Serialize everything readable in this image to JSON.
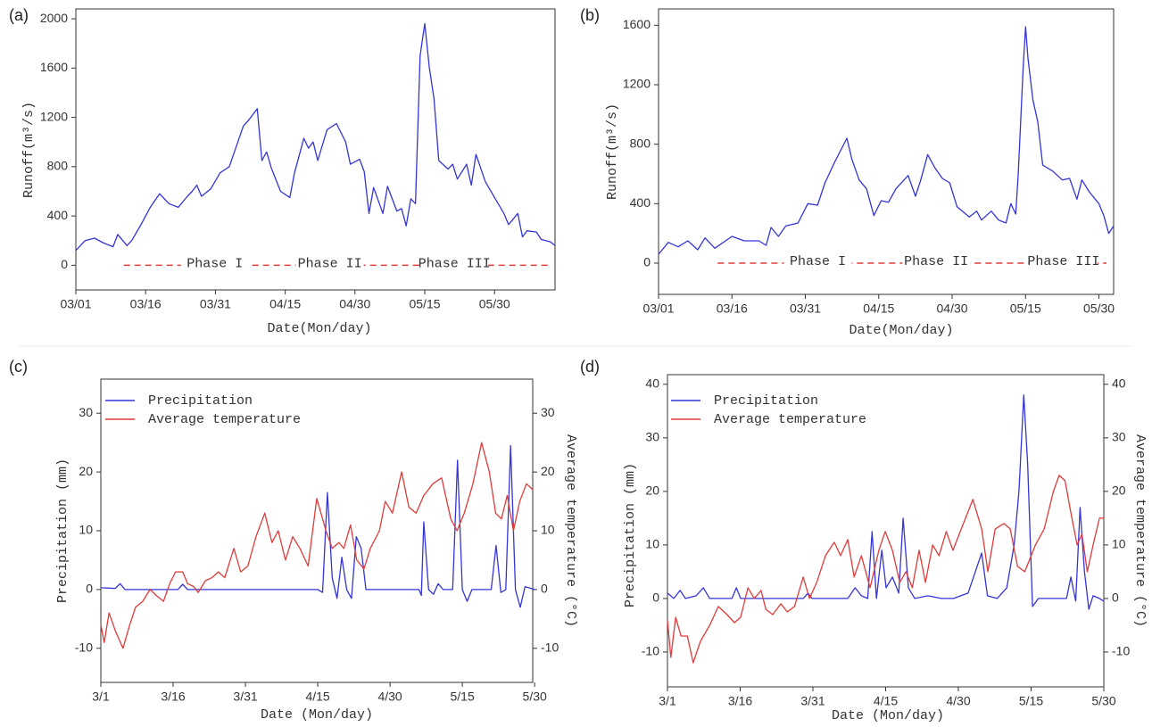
{
  "chart_data": [
    {
      "type": "line",
      "label": "(a)",
      "x_label": "Date(Mon/day)",
      "y_label": "Runoff(m³/s)",
      "xlim": [
        0,
        103
      ],
      "xticks": [
        {
          "value": 0,
          "label": "03/01"
        },
        {
          "value": 15,
          "label": "03/16"
        },
        {
          "value": 30,
          "label": "03/31"
        },
        {
          "value": 45,
          "label": "04/15"
        },
        {
          "value": 60,
          "label": "04/30"
        },
        {
          "value": 75,
          "label": "05/15"
        },
        {
          "value": 90,
          "label": "05/30"
        }
      ],
      "ylim": [
        -200,
        2080
      ],
      "yticks": [
        0,
        400,
        800,
        1200,
        1600,
        2000
      ],
      "annotations": [
        "Phase I",
        "Phase II",
        "Phase III"
      ],
      "annotation_color": "#e83a3a",
      "series": [
        {
          "color": "#3434d8",
          "x": [
            0,
            2,
            4,
            6,
            8,
            9,
            11,
            12,
            14,
            16,
            18,
            20,
            22,
            24,
            25,
            26,
            27,
            29,
            31,
            33,
            36,
            37,
            39,
            40,
            41,
            42,
            44,
            46,
            47,
            49,
            50,
            51,
            52,
            54,
            56,
            58,
            59,
            61,
            62,
            63,
            64,
            66,
            67,
            69,
            70,
            71,
            72,
            73,
            74,
            75,
            76,
            77,
            78,
            80,
            81,
            82,
            84,
            85,
            86,
            88,
            90,
            92,
            93,
            95,
            96,
            97,
            99,
            100,
            102,
            103
          ],
          "values": [
            120,
            200,
            220,
            180,
            150,
            250,
            160,
            200,
            330,
            470,
            580,
            500,
            470,
            560,
            600,
            650,
            560,
            620,
            750,
            800,
            1130,
            1170,
            1270,
            850,
            920,
            790,
            600,
            550,
            750,
            1030,
            950,
            1000,
            850,
            1100,
            1150,
            1000,
            820,
            860,
            760,
            420,
            630,
            420,
            640,
            440,
            460,
            320,
            540,
            500,
            1700,
            1960,
            1600,
            1350,
            850,
            780,
            820,
            700,
            820,
            650,
            900,
            680,
            550,
            420,
            330,
            420,
            230,
            280,
            270,
            210,
            190,
            160
          ]
        }
      ]
    },
    {
      "type": "line",
      "label": "(b)",
      "x_label": "Date(Mon/day)",
      "y_label": "Runoff(m³/s)",
      "xlim": [
        0,
        93
      ],
      "xticks": [
        {
          "value": 0,
          "label": "03/01"
        },
        {
          "value": 15,
          "label": "03/16"
        },
        {
          "value": 30,
          "label": "03/31"
        },
        {
          "value": 45,
          "label": "04/15"
        },
        {
          "value": 60,
          "label": "04/30"
        },
        {
          "value": 75,
          "label": "05/15"
        },
        {
          "value": 90,
          "label": "05/30"
        }
      ],
      "ylim": [
        -210,
        1710
      ],
      "yticks": [
        0,
        400,
        800,
        1200,
        1600
      ],
      "annotations": [
        "Phase I",
        "Phase II",
        "Phase III"
      ],
      "annotation_color": "#e83a3a",
      "series": [
        {
          "color": "#3434d8",
          "x": [
            0,
            2,
            4,
            6,
            8,
            9.5,
            11.5,
            15,
            17.5,
            20.5,
            22,
            23,
            24.5,
            26,
            28.5,
            30.5,
            32.5,
            34,
            36,
            38.5,
            39.5,
            41,
            42.5,
            44,
            45.5,
            47,
            48.5,
            51,
            52.5,
            53.5,
            55,
            56.5,
            58,
            59.5,
            61,
            63.5,
            65,
            66,
            68,
            69.5,
            71,
            72,
            73,
            73.5,
            74.5,
            75,
            75.5,
            76.5,
            77.5,
            78.5,
            80.5,
            82.5,
            84,
            85.5,
            86.5,
            88,
            90,
            91,
            92,
            93
          ],
          "values": [
            60,
            140,
            110,
            150,
            90,
            170,
            100,
            180,
            150,
            150,
            120,
            240,
            180,
            250,
            270,
            400,
            390,
            540,
            680,
            840,
            700,
            560,
            500,
            320,
            420,
            410,
            500,
            590,
            450,
            550,
            730,
            640,
            570,
            540,
            380,
            310,
            350,
            290,
            350,
            290,
            270,
            400,
            330,
            600,
            1300,
            1590,
            1380,
            1100,
            950,
            660,
            620,
            560,
            570,
            430,
            560,
            480,
            400,
            320,
            200,
            250
          ]
        }
      ]
    },
    {
      "type": "line",
      "label": "(c)",
      "x_label": "Date (Mon/day)",
      "y_label": "Precipitation (mm)",
      "y2_label": "Average temperature (°C)",
      "xlim": [
        0,
        89.6
      ],
      "xticks": [
        {
          "value": 0,
          "label": "3/1"
        },
        {
          "value": 15,
          "label": "3/16"
        },
        {
          "value": 30,
          "label": "3/31"
        },
        {
          "value": 45,
          "label": "4/15"
        },
        {
          "value": 60,
          "label": "4/30"
        },
        {
          "value": 75,
          "label": "5/15"
        },
        {
          "value": 90,
          "label": "5/30"
        }
      ],
      "ylim": [
        -15.8,
        35.8
      ],
      "yticks": [
        -10,
        0,
        10,
        20,
        30
      ],
      "y2lim": [
        -15.8,
        35.8
      ],
      "y2ticks": [
        -10,
        0,
        10,
        20,
        30
      ],
      "series": [
        {
          "name": "Precipitation",
          "color": "#3434d8",
          "x": [
            0,
            3,
            4,
            5,
            16,
            17,
            18,
            45,
            46,
            47,
            48,
            49,
            50,
            51,
            52,
            53,
            54,
            55,
            66,
            66.5,
            67,
            68,
            69,
            70,
            71,
            73,
            74,
            75,
            76,
            77,
            81,
            82,
            83,
            84,
            85,
            86,
            87,
            88,
            90
          ],
          "values": [
            0.3,
            0.2,
            1,
            0,
            0,
            0.9,
            0,
            0,
            -0.5,
            16.5,
            2,
            -1.5,
            5.5,
            0,
            -1.5,
            9,
            7,
            0,
            0,
            -1,
            11.5,
            0,
            -0.8,
            1,
            0,
            0,
            22,
            0,
            -2,
            0,
            0,
            7.5,
            -0.5,
            0,
            24.5,
            0,
            -3,
            0.5,
            0
          ]
        },
        {
          "name": "Average temperature",
          "color": "#e03a3a",
          "axis": "y2",
          "x": [
            0,
            0.7,
            1.7,
            3,
            4.6,
            6,
            7.2,
            8.7,
            10.2,
            11.5,
            13,
            14.3,
            15.5,
            17,
            18,
            19.3,
            20.2,
            21.7,
            23,
            24.4,
            25.7,
            27.6,
            29,
            30.5,
            32.2,
            34,
            35.5,
            36.8,
            38.3,
            39.8,
            41.3,
            43,
            44.8,
            46.7,
            48,
            49.4,
            50.4,
            51.8,
            53.1,
            54.6,
            55.9,
            57.8,
            59,
            60.5,
            62.4,
            63.9,
            65.4,
            67,
            68.9,
            70.7,
            72.6,
            73.9,
            75.4,
            77.2,
            79,
            80.6,
            81.9,
            83.1,
            84.3,
            85.6,
            86.9,
            88.3,
            89.6
          ],
          "values": [
            -6,
            -9,
            -4,
            -7,
            -10,
            -6,
            -3,
            -2,
            0,
            -1,
            -2,
            1,
            3,
            3,
            1,
            0.5,
            -0.5,
            1.5,
            2,
            3,
            2,
            7,
            3,
            4,
            9,
            13,
            8,
            10,
            5,
            9,
            7,
            4,
            15.5,
            10,
            7,
            8,
            7,
            11,
            5,
            3.5,
            7,
            10,
            15,
            13,
            20,
            14,
            13,
            16,
            18,
            19,
            12,
            10,
            13,
            18,
            25,
            20,
            13,
            12,
            16,
            10,
            15,
            18,
            17
          ]
        }
      ]
    },
    {
      "type": "line",
      "label": "(d)",
      "x_label": "Date (Mon/day)",
      "y_label": "Precipitation (mm)",
      "y2_label": "Average temperature (°C)",
      "xlim": [
        0,
        90
      ],
      "xticks": [
        {
          "value": 0,
          "label": "3/1"
        },
        {
          "value": 15,
          "label": "3/16"
        },
        {
          "value": 30,
          "label": "3/31"
        },
        {
          "value": 45,
          "label": "4/15"
        },
        {
          "value": 60,
          "label": "4/30"
        },
        {
          "value": 75,
          "label": "5/15"
        },
        {
          "value": 90,
          "label": "5/30"
        }
      ],
      "ylim": [
        -16.5,
        41.8
      ],
      "yticks": [
        -10,
        0,
        10,
        20,
        30,
        40
      ],
      "y2lim": [
        -16.5,
        41.8
      ],
      "y2ticks": [
        -10,
        0,
        10,
        20,
        30,
        40
      ],
      "series": [
        {
          "name": "Precipitation",
          "color": "#3434d8",
          "x": [
            0,
            1.3,
            2.6,
            3.7,
            5.9,
            7.4,
            8.7,
            13.3,
            14.2,
            15.1,
            28,
            29,
            29.8,
            37.2,
            38.7,
            40,
            41.3,
            42.2,
            43.1,
            44.2,
            45.1,
            46.4,
            47.7,
            48.6,
            49.7,
            51,
            53.7,
            56.5,
            59,
            62,
            64.8,
            66,
            68,
            70,
            71.5,
            72.5,
            73.5,
            74.3,
            75.3,
            76.5,
            82.3,
            83.2,
            84.2,
            85.1,
            86,
            86.9,
            87.8,
            89.1,
            90
          ],
          "values": [
            1,
            0,
            1.5,
            0,
            0.5,
            2,
            0,
            0,
            2,
            0,
            0,
            1,
            0,
            0,
            2,
            0.5,
            0,
            12.5,
            0,
            9,
            2,
            4,
            1,
            15,
            2,
            0,
            0.5,
            0,
            0,
            1,
            8.5,
            0.5,
            0,
            2,
            10,
            20,
            38,
            25,
            -1.5,
            0,
            0,
            4,
            -0.5,
            17,
            5,
            -2,
            0.5,
            0,
            -0.5
          ]
        },
        {
          "name": "Average temperature",
          "color": "#e03a3a",
          "axis": "y2",
          "x": [
            0,
            0.7,
            1.7,
            2.8,
            4.1,
            5.3,
            6.8,
            8.7,
            10.5,
            12.3,
            13.8,
            15.1,
            16.6,
            17.9,
            19.3,
            20.3,
            21.7,
            23.4,
            24.7,
            26.2,
            28,
            29.3,
            30.8,
            32.6,
            34.4,
            35.7,
            37.2,
            38.5,
            40,
            41.8,
            43.6,
            44.9,
            46.4,
            47.9,
            49.2,
            50.5,
            51.9,
            53.2,
            54.7,
            56,
            57.5,
            58.9,
            60.6,
            63,
            64.8,
            66.1,
            67.6,
            69.4,
            70.7,
            72.2,
            73.7,
            75.9,
            77.7,
            79.6,
            80.8,
            82,
            83.2,
            84.5,
            85.5,
            86.6,
            87.8,
            89.1,
            90
          ],
          "values": [
            -4,
            -11,
            -3.5,
            -7,
            -7,
            -12,
            -8,
            -5,
            -1.5,
            -3,
            -4.5,
            -3.5,
            2,
            0,
            1.5,
            -2,
            -3,
            -1,
            -2.5,
            -1.5,
            4,
            0,
            3,
            8,
            10.5,
            8,
            11,
            4,
            8,
            2,
            9,
            12.5,
            9,
            3,
            5,
            2,
            9,
            3,
            10,
            8,
            12.5,
            9,
            13,
            18.5,
            13,
            5,
            13,
            14,
            13,
            6,
            5,
            10,
            13,
            20,
            23,
            22,
            16,
            10,
            12,
            5,
            10,
            15,
            15
          ]
        }
      ]
    }
  ]
}
